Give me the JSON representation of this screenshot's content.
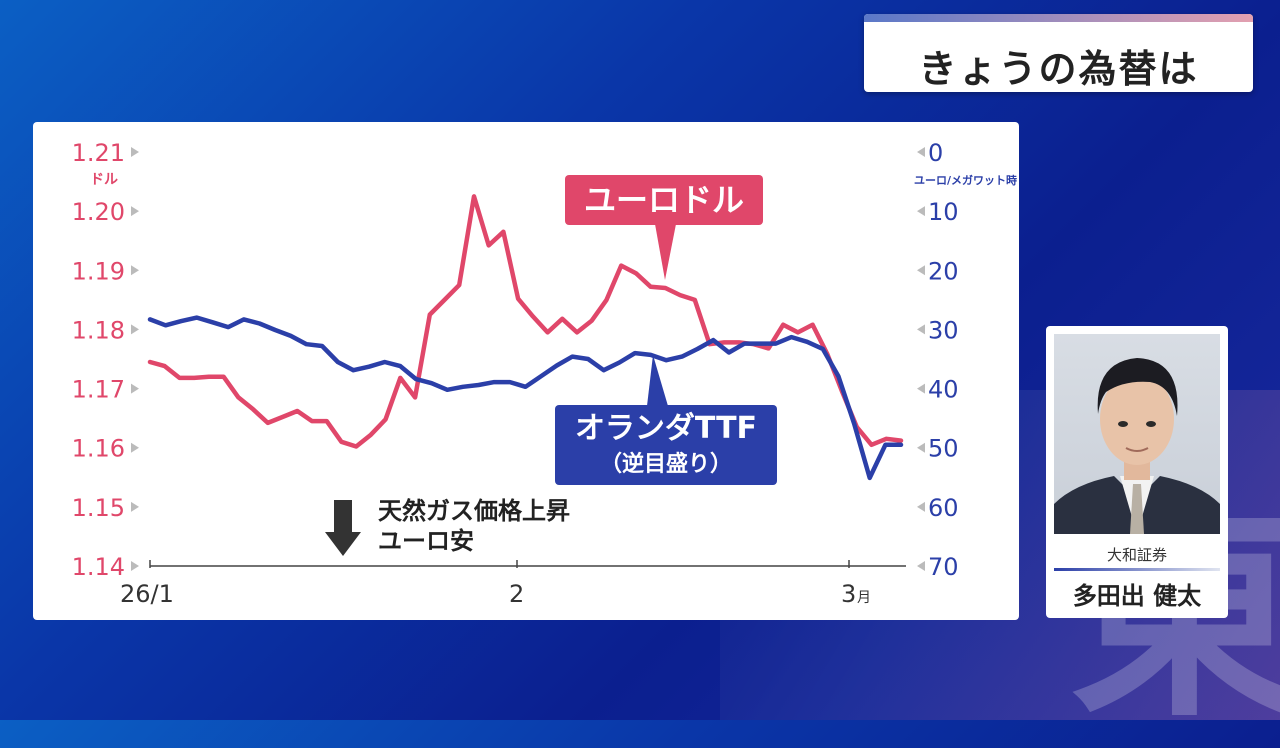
{
  "header": {
    "title": "きょうの為替は"
  },
  "chart": {
    "left_unit": "ドル",
    "right_unit": "ユーロ/メガワット時",
    "left_ticks": [
      "1.21",
      "1.20",
      "1.19",
      "1.18",
      "1.17",
      "1.16",
      "1.15",
      "1.14"
    ],
    "right_ticks": [
      "0",
      "10",
      "20",
      "30",
      "40",
      "50",
      "60",
      "70"
    ],
    "x_ticks": [
      {
        "label": "26/1",
        "suffix": ""
      },
      {
        "label": "2",
        "suffix": ""
      },
      {
        "label": "3",
        "suffix": "月"
      }
    ],
    "series_eurusd_label": "ユーロドル",
    "series_ttf_label_line1": "オランダTTF",
    "series_ttf_label_line2": "（逆目盛り）",
    "annotation_line1": "天然ガス価格上昇",
    "annotation_line2": "ユーロ安",
    "colors": {
      "eurusd": "#e0476a",
      "ttf": "#2b3fa8"
    }
  },
  "chart_data": {
    "type": "line",
    "x_axis": [
      "26/1",
      "2",
      "3月"
    ],
    "left_ylim": [
      1.14,
      1.21
    ],
    "right_ylim_inverted": [
      70,
      0
    ],
    "series": [
      {
        "name": "ユーロドル",
        "axis": "left",
        "values": [
          1.1745,
          1.1738,
          1.1718,
          1.1718,
          1.172,
          1.172,
          1.1685,
          1.1665,
          1.1642,
          1.1652,
          1.1662,
          1.1645,
          1.1645,
          1.161,
          1.1602,
          1.1622,
          1.1648,
          1.1718,
          1.1685,
          1.1825,
          1.185,
          1.1875,
          1.2025,
          1.1942,
          1.1965,
          1.1852,
          1.1822,
          1.1795,
          1.1818,
          1.1795,
          1.1815,
          1.185,
          1.1908,
          1.1895,
          1.1872,
          1.187,
          1.1858,
          1.185,
          1.1775,
          1.1778,
          1.1778,
          1.1775,
          1.1768,
          1.1808,
          1.1795,
          1.1808,
          1.1758,
          1.1695,
          1.1635,
          1.1605,
          1.1615,
          1.1612
        ]
      },
      {
        "name": "オランダTTF",
        "axis": "right",
        "values": [
          28.3,
          29.3,
          28.6,
          28.0,
          28.8,
          29.6,
          28.3,
          29.0,
          30.1,
          31.1,
          32.5,
          32.8,
          35.5,
          36.9,
          36.3,
          35.5,
          36.2,
          38.4,
          39.1,
          40.2,
          39.7,
          39.4,
          38.9,
          38.9,
          39.7,
          37.9,
          36.1,
          34.6,
          35.0,
          36.9,
          35.6,
          34.0,
          34.3,
          35.2,
          34.6,
          33.3,
          31.8,
          33.9,
          32.4,
          32.4,
          32.4,
          31.3,
          32.1,
          33.3,
          37.9,
          45.9,
          55.1,
          49.5,
          49.5
        ]
      }
    ]
  },
  "guest": {
    "company": "大和証券",
    "name": "多田出 健太"
  }
}
